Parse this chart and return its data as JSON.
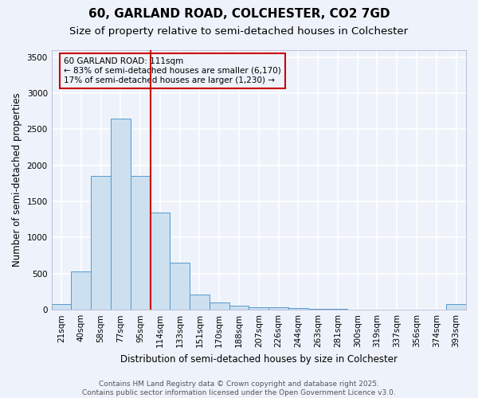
{
  "title1": "60, GARLAND ROAD, COLCHESTER, CO2 7GD",
  "title2": "Size of property relative to semi-detached houses in Colchester",
  "xlabel": "Distribution of semi-detached houses by size in Colchester",
  "ylabel": "Number of semi-detached properties",
  "categories": [
    "21sqm",
    "40sqm",
    "58sqm",
    "77sqm",
    "95sqm",
    "114sqm",
    "133sqm",
    "151sqm",
    "170sqm",
    "188sqm",
    "207sqm",
    "226sqm",
    "244sqm",
    "263sqm",
    "281sqm",
    "300sqm",
    "319sqm",
    "337sqm",
    "356sqm",
    "374sqm",
    "393sqm"
  ],
  "values": [
    75,
    530,
    1850,
    2650,
    1850,
    1350,
    650,
    210,
    100,
    60,
    40,
    30,
    20,
    15,
    8,
    5,
    3,
    2,
    2,
    1,
    75
  ],
  "bar_color": "#cce0f0",
  "bar_edge_color": "#5599cc",
  "property_line_color": "#cc0000",
  "annotation_text": "60 GARLAND ROAD: 111sqm\n← 83% of semi-detached houses are smaller (6,170)\n17% of semi-detached houses are larger (1,230) →",
  "annotation_box_color": "#cc0000",
  "ylim": [
    0,
    3600
  ],
  "yticks": [
    0,
    500,
    1000,
    1500,
    2000,
    2500,
    3000,
    3500
  ],
  "footer1": "Contains HM Land Registry data © Crown copyright and database right 2025.",
  "footer2": "Contains public sector information licensed under the Open Government Licence v3.0.",
  "background_color": "#eef3fb",
  "grid_color": "#ffffff",
  "title1_fontsize": 11,
  "title2_fontsize": 9.5,
  "axis_label_fontsize": 8.5,
  "tick_fontsize": 7.5,
  "annotation_fontsize": 7.5,
  "footer_fontsize": 6.5
}
